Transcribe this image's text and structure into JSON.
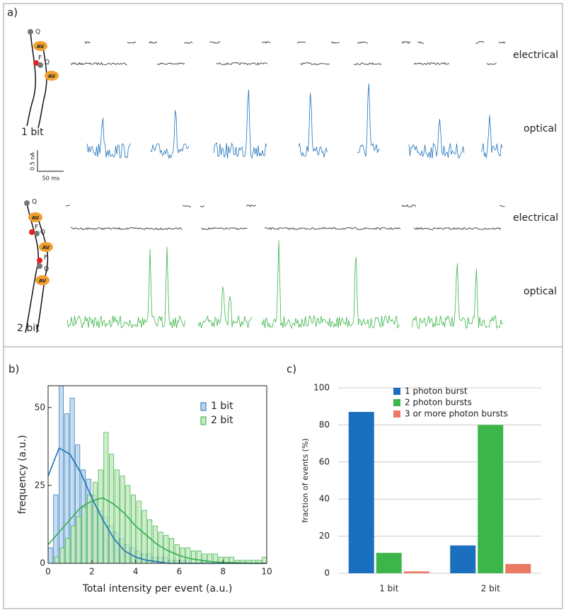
{
  "panel_a": {
    "label": "a)",
    "rows": [
      {
        "bits": "1 bit",
        "electrical": "electrical",
        "optical": "optical",
        "diagram_labels": [
          "Q",
          "AV",
          "F",
          "Q",
          "AV"
        ],
        "scale_y": "0.5 nA",
        "scale_x": "50 ms"
      },
      {
        "bits": "2 bit",
        "electrical": "electrical",
        "optical": "optical",
        "diagram_labels": [
          "Q",
          "AV",
          "F",
          "Q",
          "AV",
          "F",
          "Q",
          "AV"
        ]
      }
    ]
  },
  "chart_data": [
    {
      "type": "histogram",
      "panel_label": "b)",
      "x_label": "Total intensity per event (a.u.)",
      "y_label": "frequency (a.u.)",
      "bins": [
        0,
        0.25,
        0.5,
        0.75,
        1,
        1.25,
        1.5,
        1.75,
        2,
        2.25,
        2.5,
        2.75,
        3,
        3.25,
        3.5,
        3.75,
        4,
        4.25,
        4.5,
        4.75,
        5,
        5.25,
        5.5,
        5.75,
        6,
        6.25,
        6.5,
        6.75,
        7,
        7.25,
        7.5,
        7.75,
        8,
        8.25,
        8.5,
        8.75,
        9,
        9.25,
        9.5,
        9.75,
        10
      ],
      "fit_x": [
        0,
        0.5,
        1,
        1.5,
        2,
        2.5,
        3,
        3.5,
        4,
        4.5,
        5,
        5.5,
        6,
        6.5,
        7,
        7.5,
        8,
        8.5,
        9,
        9.5,
        10
      ],
      "series": [
        {
          "name": "1 bit",
          "color": "#1f72b8",
          "fill": "#b9d3ec",
          "values": [
            5,
            22,
            57,
            48,
            53,
            38,
            30,
            27,
            22,
            17,
            15,
            12,
            10,
            8,
            6,
            5,
            4,
            3,
            3,
            2,
            2,
            2,
            1,
            1,
            1,
            1,
            0,
            0,
            1,
            0,
            0,
            0,
            0,
            0,
            0,
            0,
            0,
            0,
            0,
            0
          ],
          "fit": [
            28,
            37,
            35,
            29,
            21,
            14,
            8,
            4,
            2,
            1,
            0.5,
            0,
            0,
            0,
            0,
            0,
            0,
            0,
            0,
            0,
            0
          ]
        },
        {
          "name": "2 bit",
          "color": "#2fb04a",
          "fill": "#c5e8bd",
          "values": [
            0,
            2,
            5,
            8,
            12,
            15,
            18,
            22,
            26,
            30,
            42,
            35,
            30,
            28,
            25,
            22,
            20,
            17,
            14,
            12,
            10,
            9,
            8,
            6,
            5,
            5,
            4,
            4,
            3,
            3,
            3,
            2,
            2,
            2,
            1,
            1,
            1,
            1,
            1,
            2
          ],
          "fit": [
            6,
            10,
            14,
            18,
            20,
            21,
            19,
            16,
            12,
            9,
            6,
            4,
            2.5,
            1.5,
            1,
            0.5,
            0.3,
            0.2,
            0.1,
            0,
            0
          ]
        }
      ],
      "xlim": [
        0,
        10
      ],
      "xticks": [
        0,
        2,
        4,
        6,
        8,
        10
      ],
      "ylim": [
        0,
        57
      ],
      "yticks": [
        0,
        25,
        50
      ],
      "legend": "upper-right"
    },
    {
      "type": "bar",
      "panel_label": "c)",
      "y_label": "fraction of events (%)",
      "categories": [
        "1 bit",
        "2 bit"
      ],
      "series": [
        {
          "name": "1 photon burst",
          "color": "#1a6fbf",
          "values": [
            87,
            15
          ]
        },
        {
          "name": "2 photon bursts",
          "color": "#3cb64a",
          "values": [
            11,
            80
          ]
        },
        {
          "name": "3 or more photon bursts",
          "color": "#ea7a62",
          "values": [
            1,
            5
          ]
        }
      ],
      "ylim": [
        0,
        100
      ],
      "yticks": [
        0,
        20,
        40,
        60,
        80,
        100
      ],
      "grid": true,
      "legend": "upper-center"
    }
  ]
}
